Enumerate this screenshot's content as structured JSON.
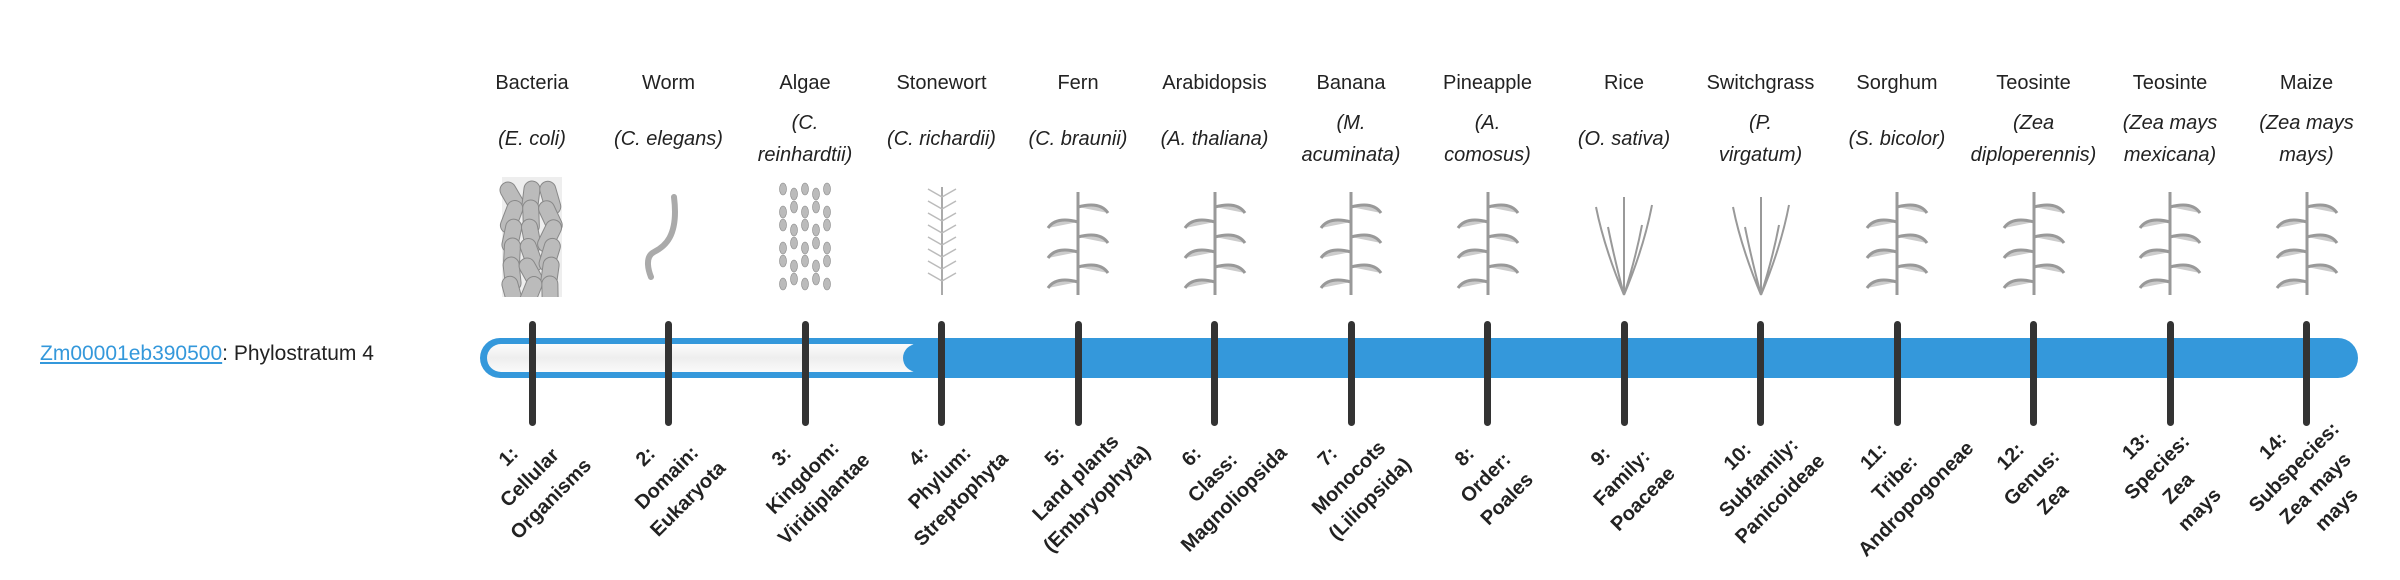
{
  "gene": {
    "id": "Zm00001eb390500",
    "separator": ": ",
    "label": "Phylostratum 4"
  },
  "phylostratum": 4,
  "total_strata": 14,
  "colors": {
    "bar": "#3498db",
    "link": "#3498db",
    "tick": "#333333"
  },
  "strata": [
    {
      "name": "Bacteria",
      "species": [
        "(E. coli)"
      ],
      "rank": [
        "1:",
        "Cellular",
        "Organisms"
      ],
      "icon": "bacteria-icon"
    },
    {
      "name": "Worm",
      "species": [
        "(C. elegans)"
      ],
      "rank": [
        "2:",
        "Domain:",
        "Eukaryota"
      ],
      "icon": "worm-icon"
    },
    {
      "name": "Algae",
      "species": [
        "(C.",
        "reinhardtii)"
      ],
      "rank": [
        "3:",
        "Kingdom:",
        "Viridiplantae"
      ],
      "icon": "algae-icon"
    },
    {
      "name": "Stonewort",
      "species": [
        "(C. richardii)"
      ],
      "rank": [
        "4:",
        "Phylum:",
        "Streptophyta"
      ],
      "icon": "stonewort-icon"
    },
    {
      "name": "Fern",
      "species": [
        "(C. braunii)"
      ],
      "rank": [
        "5:",
        "Land plants",
        "(Embryophyta)"
      ],
      "icon": "fern-icon"
    },
    {
      "name": "Arabidopsis",
      "species": [
        "(A. thaliana)"
      ],
      "rank": [
        "6:",
        "Class:",
        "Magnoliopsida"
      ],
      "icon": "arabidopsis-icon"
    },
    {
      "name": "Banana",
      "species": [
        "(M.",
        "acuminata)"
      ],
      "rank": [
        "7:",
        "Monocots",
        "(Liliopsida)"
      ],
      "icon": "banana-icon"
    },
    {
      "name": "Pineapple",
      "species": [
        "(A.",
        "comosus)"
      ],
      "rank": [
        "8:",
        "Order:",
        "Poales"
      ],
      "icon": "pineapple-icon"
    },
    {
      "name": "Rice",
      "species": [
        "(O. sativa)"
      ],
      "rank": [
        "9:",
        "Family:",
        "Poaceae"
      ],
      "icon": "rice-icon"
    },
    {
      "name": "Switchgrass",
      "species": [
        "(P.",
        "virgatum)"
      ],
      "rank": [
        "10:",
        "Subfamily:",
        "Panicoideae"
      ],
      "icon": "switchgrass-icon"
    },
    {
      "name": "Sorghum",
      "species": [
        "(S. bicolor)"
      ],
      "rank": [
        "11:",
        "Tribe:",
        "Andropogoneae"
      ],
      "icon": "sorghum-icon"
    },
    {
      "name": "Teosinte",
      "species": [
        "(Zea",
        "diploperennis)"
      ],
      "rank": [
        "12:",
        "Genus:",
        "Zea"
      ],
      "icon": "teosinte-icon"
    },
    {
      "name": "Teosinte",
      "species": [
        "(Zea mays",
        "mexicana)"
      ],
      "rank": [
        "13:",
        "Species:",
        "Zea",
        "mays"
      ],
      "icon": "teosinte-mexicana-icon"
    },
    {
      "name": "Maize",
      "species": [
        "(Zea mays",
        "mays)"
      ],
      "rank": [
        "14:",
        "Subspecies:",
        "Zea mays",
        "mays"
      ],
      "icon": "maize-icon"
    }
  ]
}
